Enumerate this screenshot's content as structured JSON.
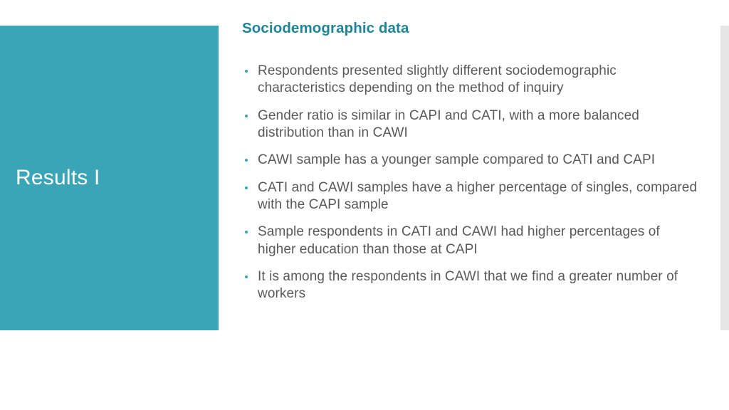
{
  "colors": {
    "accent": "#39a5b7",
    "accent_text": "#1e8496",
    "body_text": "#595959",
    "grey_bar": "#e6e6e6",
    "white": "#ffffff",
    "bullet": "#39a5b7"
  },
  "sidebar": {
    "title": "Results I"
  },
  "content": {
    "subtitle": "Sociodemographic data",
    "bullets": [
      "Respondents presented slightly different sociodemographic characteristics depending on the method of inquiry",
      "Gender ratio is similar in CAPI and CATI, with a more balanced distribution than in CAWI",
      "CAWI sample has a younger sample compared to CATI and CAPI",
      "CATI and CAWI samples have a  higher percentage of  singles, compared with the CAPI sample",
      "Sample respondents in CATI and CAWI had higher percentages of higher education than those at CAPI",
      "It is among the respondents in CAWI that we find a greater number of workers"
    ]
  }
}
